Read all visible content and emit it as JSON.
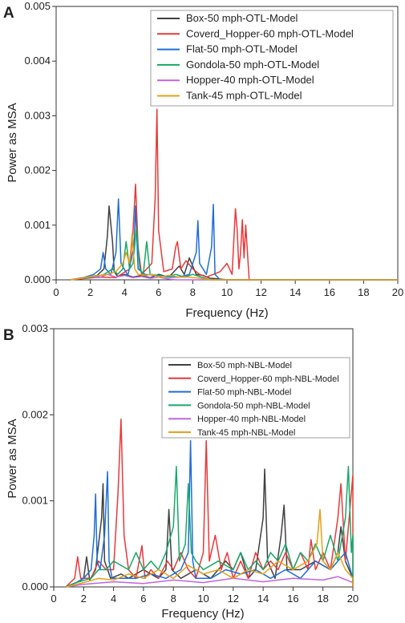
{
  "chart_data": [
    {
      "type": "line",
      "panel_label": "A",
      "xlabel": "Frequency (Hz)",
      "ylabel": "Power as MSA",
      "xlim": [
        0,
        20
      ],
      "ylim": [
        0,
        0.005
      ],
      "x_ticks": [
        "0",
        "2",
        "4",
        "6",
        "8",
        "10",
        "12",
        "14",
        "16",
        "18",
        "20"
      ],
      "y_ticks": [
        "0.000",
        "0.001",
        "0.002",
        "0.003",
        "0.004",
        "0.005"
      ],
      "grid": false,
      "legend_position": "top-right",
      "series": [
        {
          "name": "Box-50 mph-OTL-Model",
          "color": "#404040",
          "x": [
            0.8,
            1.2,
            1.8,
            2.4,
            2.8,
            3.0,
            3.1,
            3.3,
            3.4,
            3.6,
            4.0,
            4.5,
            5.0,
            5.5,
            6.0,
            6.6,
            7.2,
            7.5,
            7.8,
            8.2,
            8.6,
            9.0,
            9.4,
            10.0
          ],
          "y": [
            0,
            2e-05,
            5e-05,
            8e-05,
            0.0002,
            0.0008,
            0.00135,
            0.0007,
            0.00015,
            6e-05,
            0.0001,
            5e-05,
            8e-05,
            4e-05,
            0.0001,
            5e-05,
            0.00025,
            0.0001,
            0.0004,
            0.0001,
            8e-05,
            3e-05,
            2e-05,
            0
          ]
        },
        {
          "name": "Coverd_Hopper-60 mph-OTL-Model",
          "color": "#e8393a",
          "x": [
            0.8,
            1.5,
            2.5,
            3.5,
            4.3,
            4.5,
            4.65,
            4.8,
            5.0,
            5.6,
            5.8,
            5.9,
            6.0,
            6.3,
            6.8,
            7.0,
            7.1,
            7.3,
            7.6,
            8.0,
            8.4,
            8.8,
            9.2,
            9.6,
            10.0,
            10.3,
            10.5,
            10.6,
            10.7,
            10.8,
            10.9,
            11.0,
            11.1,
            11.3
          ],
          "y": [
            0,
            2e-05,
            5e-05,
            4e-05,
            0.0002,
            0.0009,
            0.00175,
            0.0006,
            0.0001,
            0.0003,
            0.0015,
            0.00312,
            0.0009,
            0.00015,
            0.0002,
            0.0006,
            0.0007,
            0.0002,
            0.00035,
            0.0002,
            0.0001,
            5e-05,
            0.0001,
            0.00015,
            0.0003,
            0.0001,
            0.0013,
            0.0009,
            0.0002,
            0.0005,
            0.0011,
            0.0004,
            0.001,
            0
          ]
        },
        {
          "name": "Flat-50 mph-OTL-Model",
          "color": "#1d6fd6",
          "x": [
            0.8,
            1.5,
            2.2,
            2.6,
            2.75,
            2.9,
            3.2,
            3.5,
            3.65,
            3.8,
            4.2,
            4.55,
            4.65,
            4.8,
            5.2,
            6.0,
            6.6,
            7.2,
            7.8,
            8.2,
            8.3,
            8.4,
            8.8,
            9.1,
            9.2,
            9.3,
            9.6
          ],
          "y": [
            0,
            3e-05,
            0.0001,
            0.0002,
            0.0005,
            0.0002,
            0.0001,
            0.0005,
            0.00148,
            0.0003,
            8e-05,
            0.0006,
            0.00135,
            0.0002,
            0.0001,
            8e-05,
            5e-05,
            5e-05,
            0.0001,
            0.0005,
            0.00108,
            0.0003,
            0.0001,
            0.0006,
            0.00138,
            0.0001,
            0
          ]
        },
        {
          "name": "Gondola-50 mph-OTL-Model",
          "color": "#17a86b",
          "x": [
            0.8,
            1.5,
            2.2,
            2.8,
            3.3,
            3.6,
            3.9,
            4.1,
            4.3,
            4.5,
            4.7,
            4.9,
            5.1,
            5.3,
            5.5,
            6.0,
            6.5,
            7.0,
            7.5,
            8.0,
            8.5,
            9.0
          ],
          "y": [
            0,
            3e-05,
            5e-05,
            0.0001,
            0.0002,
            0.0001,
            0.0002,
            0.0007,
            0.0002,
            0.0003,
            0.00095,
            0.0002,
            0.0001,
            0.0007,
            0.0001,
            8e-05,
            5e-05,
            0.0001,
            5e-05,
            0.0001,
            5e-05,
            0
          ]
        },
        {
          "name": "Hopper-40 mph-OTL-Model",
          "color": "#c065dd",
          "x": [
            0.8,
            1.5,
            2.0,
            2.5,
            3.0,
            3.5,
            4.0,
            4.5,
            5.0,
            5.5,
            6.0,
            6.5,
            7.0
          ],
          "y": [
            0,
            3e-05,
            6e-05,
            4e-05,
            0.0001,
            5e-05,
            8e-05,
            4e-05,
            6e-05,
            3e-05,
            5e-05,
            2e-05,
            0
          ]
        },
        {
          "name": "Tank-45 mph-OTL-Model",
          "color": "#e8a016",
          "x": [
            0.8,
            1.5,
            2.0,
            2.5,
            3.0,
            3.5,
            3.9,
            4.1,
            4.3,
            4.45,
            4.6,
            4.8,
            5.2,
            5.6,
            6.0,
            6.6,
            7.2,
            7.8,
            8.4,
            9.0
          ],
          "y": [
            0,
            3e-05,
            6e-05,
            8e-05,
            0.0001,
            0.00015,
            0.0003,
            0.0005,
            0.0003,
            0.00085,
            0.0002,
            0.0001,
            8e-05,
            0.0001,
            5e-05,
            8e-05,
            5e-05,
            5e-05,
            3e-05,
            0
          ]
        }
      ]
    },
    {
      "type": "line",
      "panel_label": "B",
      "xlabel": "Frequency (Hz)",
      "ylabel": "Power as MSA",
      "xlim": [
        0,
        20
      ],
      "ylim": [
        0,
        0.003
      ],
      "x_ticks": [
        "0",
        "2",
        "4",
        "6",
        "8",
        "10",
        "12",
        "14",
        "16",
        "18",
        "20"
      ],
      "y_ticks": [
        "0.000",
        "0.001",
        "0.002",
        "0.003"
      ],
      "grid": false,
      "legend_position": "top",
      "series": [
        {
          "name": "Box-50 mph-NBL-Model",
          "color": "#404040",
          "x": [
            0.8,
            1.5,
            2.0,
            2.2,
            2.4,
            2.8,
            3.2,
            3.3,
            3.4,
            3.8,
            4.5,
            5.0,
            6.0,
            7.0,
            7.5,
            7.7,
            7.9,
            8.5,
            9.5,
            10.5,
            11.5,
            12.0,
            12.5,
            13.0,
            13.5,
            14.0,
            14.1,
            14.3,
            14.8,
            15.2,
            15.4,
            15.6,
            16.5,
            17.5,
            18.5,
            19.0,
            19.2,
            19.5,
            20.0
          ],
          "y": [
            0,
            5e-05,
            0.0001,
            0.00035,
            8e-05,
            0.0002,
            0.0008,
            0.0012,
            0.0003,
            0.0001,
            0.00015,
            0.0001,
            0.0002,
            0.0001,
            0.0002,
            0.0009,
            0.0002,
            0.0001,
            0.0002,
            0.0001,
            0.0003,
            0.0002,
            0.0004,
            0.0001,
            0.0002,
            0.0008,
            0.00137,
            0.0003,
            0.0001,
            0.0006,
            0.00095,
            0.0002,
            0.0002,
            0.0003,
            0.0002,
            0.0004,
            0.0007,
            0.0003,
            0.0001
          ]
        },
        {
          "name": "Coverd_Hopper-60 mph-NBL-Model",
          "color": "#e8393a",
          "x": [
            0.8,
            1.4,
            1.6,
            1.8,
            2.5,
            3.0,
            3.5,
            4.0,
            4.3,
            4.5,
            4.7,
            5.0,
            5.5,
            5.9,
            6.1,
            6.5,
            7.0,
            7.6,
            8.0,
            8.5,
            9.0,
            9.5,
            10.0,
            10.2,
            10.4,
            10.8,
            11.2,
            11.6,
            12.0,
            12.5,
            13.0,
            13.5,
            14.0,
            14.5,
            15.0,
            15.5,
            16.0,
            16.5,
            17.0,
            17.2,
            17.5,
            18.0,
            18.5,
            19.0,
            19.2,
            19.5,
            19.8,
            20.0
          ],
          "y": [
            0,
            0.0001,
            0.00035,
            0.0001,
            0.0001,
            0.0003,
            0.0002,
            0.0002,
            0.0011,
            0.00195,
            0.0006,
            0.0002,
            0.0001,
            0.00048,
            0.0001,
            0.0002,
            0.0001,
            0.0003,
            0.0002,
            0.0004,
            0.0002,
            0.0001,
            0.0004,
            0.0017,
            0.0003,
            0.0006,
            0.0002,
            0.0004,
            0.0001,
            0.0003,
            0.0001,
            0.0004,
            0.0002,
            0.0003,
            0.0002,
            0.0004,
            0.0002,
            0.0004,
            0.0002,
            0.00055,
            0.0002,
            0.0004,
            0.0002,
            0.0008,
            0.0012,
            0.0003,
            0.0009,
            0.0013
          ]
        },
        {
          "name": "Flat-50 mph-NBL-Model",
          "color": "#1d6fd6",
          "x": [
            0.8,
            1.5,
            2.0,
            2.5,
            2.7,
            2.8,
            2.9,
            3.1,
            3.4,
            3.6,
            3.7,
            3.9,
            4.5,
            5.5,
            6.5,
            7.5,
            8.5,
            9.0,
            9.15,
            9.3,
            9.5,
            10.5,
            11.5,
            12.5,
            13.5,
            14.5,
            15.5,
            16.5,
            17.5,
            18.5,
            19.5,
            20.0
          ],
          "y": [
            0,
            5e-05,
            0.0001,
            0.0002,
            0.0006,
            0.00108,
            0.0003,
            0.0002,
            0.0006,
            0.00134,
            0.0003,
            0.0001,
            0.0001,
            0.0001,
            0.00015,
            0.0001,
            0.0002,
            0.0004,
            0.0017,
            0.0003,
            0.0001,
            0.0001,
            0.0002,
            0.00015,
            0.0002,
            0.0001,
            0.0002,
            0.0001,
            0.0003,
            0.0002,
            0.0004,
            0.0001
          ]
        },
        {
          "name": "Gondola-50 mph-NBL-Model",
          "color": "#17a86b",
          "x": [
            0.8,
            1.5,
            2.5,
            3.0,
            3.5,
            4.0,
            5.0,
            5.5,
            6.0,
            6.5,
            7.0,
            7.5,
            8.0,
            8.2,
            8.4,
            8.8,
            9.0,
            9.2,
            9.5,
            10.0,
            11.0,
            12.0,
            12.5,
            13.0,
            13.5,
            14.0,
            14.5,
            15.0,
            15.5,
            16.0,
            16.5,
            17.0,
            17.5,
            18.0,
            18.5,
            19.0,
            19.5,
            19.7,
            19.9,
            20.0
          ],
          "y": [
            0,
            5e-05,
            0.0001,
            0.0002,
            0.0002,
            0.0003,
            0.0002,
            0.0004,
            0.0002,
            0.0003,
            0.0002,
            0.0004,
            0.0007,
            0.0014,
            0.0003,
            0.0005,
            0.0012,
            0.0004,
            0.0003,
            0.0002,
            0.0003,
            0.0002,
            0.0004,
            0.0002,
            0.0003,
            0.0002,
            0.0004,
            0.0003,
            0.0005,
            0.0002,
            0.0004,
            0.0003,
            0.0005,
            0.0003,
            0.0006,
            0.0003,
            0.0008,
            0.0014,
            0.0004,
            0.0006
          ]
        },
        {
          "name": "Hopper-40 mph-NBL-Model",
          "color": "#c065dd",
          "x": [
            0.8,
            2.0,
            4.0,
            6.0,
            8.0,
            10.0,
            12.0,
            14.0,
            16.0,
            18.0,
            19.0,
            20.0
          ],
          "y": [
            0,
            3e-05,
            6e-05,
            4e-05,
            8e-05,
            5e-05,
            0.0001,
            6e-05,
            0.0001,
            8e-05,
            0.00012,
            5e-05
          ]
        },
        {
          "name": "Tank-45 mph-NBL-Model",
          "color": "#e8a016",
          "x": [
            0.8,
            2.0,
            3.0,
            4.0,
            5.0,
            6.0,
            7.0,
            8.0,
            9.0,
            10.0,
            11.0,
            12.0,
            13.0,
            14.0,
            15.0,
            16.0,
            17.0,
            17.6,
            17.8,
            18.0,
            18.5,
            19.0,
            19.5,
            20.0
          ],
          "y": [
            0,
            5e-05,
            0.0001,
            8e-05,
            0.00015,
            0.0001,
            0.0002,
            0.0001,
            0.00025,
            0.00015,
            0.0002,
            0.0001,
            0.0002,
            0.00015,
            0.0003,
            0.0002,
            0.0003,
            0.0005,
            0.0009,
            0.0003,
            0.0002,
            0.0004,
            0.0002,
            0.0001
          ]
        }
      ]
    }
  ]
}
